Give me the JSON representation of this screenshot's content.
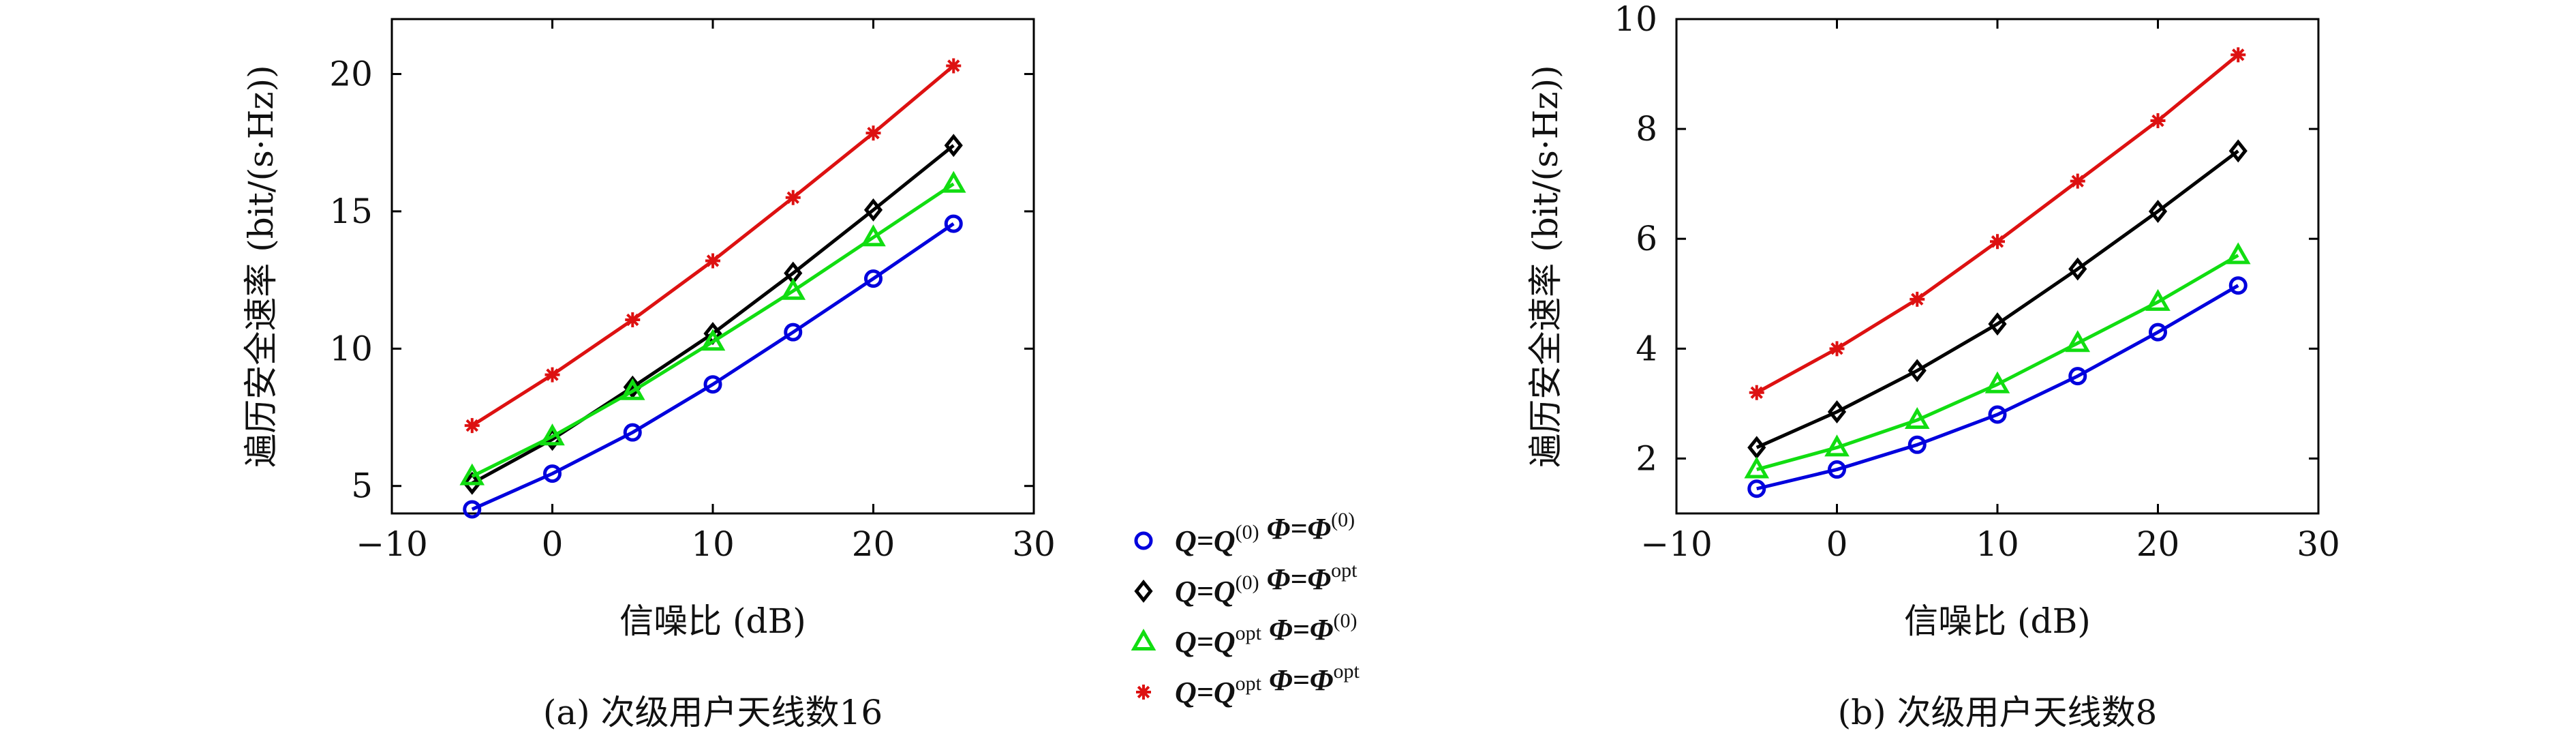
{
  "chart_data": [
    {
      "type": "line",
      "caption": "(a) 次级用户天线数16",
      "xlabel": "信噪比 (dB)",
      "ylabel": "遍历安全速率 (bit/(s·Hz))",
      "xlim": [
        -10,
        30
      ],
      "ylim": [
        4,
        22
      ],
      "xticks": [
        -10,
        0,
        10,
        20,
        30
      ],
      "xtick_labels": [
        "−10",
        "0",
        "10",
        "20",
        "30"
      ],
      "yticks": [
        5,
        10,
        15,
        20
      ],
      "ytick_labels": [
        "5",
        "10",
        "15",
        "20"
      ],
      "x": [
        -5,
        0,
        5,
        10,
        15,
        20,
        25
      ],
      "grid": false,
      "series": [
        {
          "key": "s1",
          "color": "#0000dd",
          "marker": "circle",
          "values": [
            4.15,
            5.45,
            6.95,
            8.7,
            10.6,
            12.55,
            14.55
          ]
        },
        {
          "key": "s2",
          "color": "#000000",
          "marker": "diamond",
          "values": [
            5.1,
            6.7,
            8.6,
            10.55,
            12.75,
            15.05,
            17.4
          ]
        },
        {
          "key": "s3",
          "color": "#11dd11",
          "marker": "triangle",
          "values": [
            5.35,
            6.8,
            8.45,
            10.25,
            12.1,
            14.05,
            16.0
          ]
        },
        {
          "key": "s4",
          "color": "#dd1111",
          "marker": "star",
          "values": [
            7.2,
            9.05,
            11.05,
            13.2,
            15.5,
            17.85,
            20.3
          ]
        }
      ]
    },
    {
      "type": "line",
      "caption": "(b) 次级用户天线数8",
      "xlabel": "信噪比 (dB)",
      "ylabel": "遍历安全速率 (bit/(s·Hz))",
      "xlim": [
        -10,
        30
      ],
      "ylim": [
        1,
        10
      ],
      "xticks": [
        -10,
        0,
        10,
        20,
        30
      ],
      "xtick_labels": [
        "−10",
        "0",
        "10",
        "20",
        "30"
      ],
      "yticks": [
        2,
        4,
        6,
        8,
        10
      ],
      "ytick_labels": [
        "2",
        "4",
        "6",
        "8",
        "10"
      ],
      "x": [
        -5,
        0,
        5,
        10,
        15,
        20,
        25
      ],
      "grid": false,
      "series": [
        {
          "key": "s1",
          "color": "#0000dd",
          "marker": "circle",
          "values": [
            1.45,
            1.8,
            2.25,
            2.8,
            3.5,
            4.3,
            5.15
          ]
        },
        {
          "key": "s2",
          "color": "#000000",
          "marker": "diamond",
          "values": [
            2.2,
            2.85,
            3.6,
            4.45,
            5.45,
            6.5,
            7.6
          ]
        },
        {
          "key": "s3",
          "color": "#11dd11",
          "marker": "triangle",
          "values": [
            1.8,
            2.2,
            2.7,
            3.35,
            4.1,
            4.85,
            5.7
          ]
        },
        {
          "key": "s4",
          "color": "#dd1111",
          "marker": "star",
          "values": [
            3.2,
            4.0,
            4.9,
            5.95,
            7.05,
            8.15,
            9.35
          ]
        }
      ]
    }
  ],
  "legend": {
    "placement": "center, between the two panels",
    "entries": [
      {
        "key": "s1",
        "color": "#0000dd",
        "marker": "circle",
        "q": "Q",
        "q_val": "Q",
        "q_sup": "(0)",
        "phi": "Φ",
        "phi_val": "Φ",
        "phi_sup": "(0)"
      },
      {
        "key": "s2",
        "color": "#000000",
        "marker": "diamond",
        "q": "Q",
        "q_val": "Q",
        "q_sup": "(0)",
        "phi": "Φ",
        "phi_val": "Φ",
        "phi_sup": "opt"
      },
      {
        "key": "s3",
        "color": "#11dd11",
        "marker": "triangle",
        "q": "Q",
        "q_val": "Q",
        "q_sup": "opt",
        "phi": "Φ",
        "phi_val": "Φ",
        "phi_sup": "(0)"
      },
      {
        "key": "s4",
        "color": "#dd1111",
        "marker": "star",
        "q": "Q",
        "q_val": "Q",
        "q_sup": "opt",
        "phi": "Φ",
        "phi_val": "Φ",
        "phi_sup": "opt"
      }
    ]
  }
}
